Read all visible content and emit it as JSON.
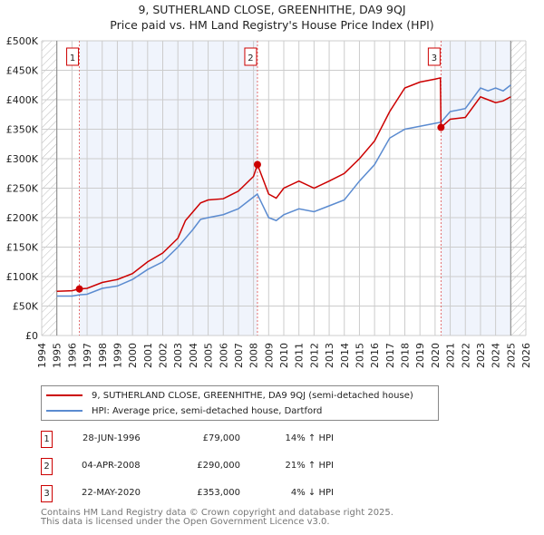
{
  "chart_data": {
    "type": "line",
    "title": "9, SUTHERLAND CLOSE, GREENHITHE, DA9 9QJ",
    "subtitle": "Price paid vs. HM Land Registry's House Price Index (HPI)",
    "xlim": [
      1994,
      2026
    ],
    "ylim": [
      0,
      500000
    ],
    "x_ticks": [
      "1994",
      "1995",
      "1996",
      "1997",
      "1998",
      "1999",
      "2000",
      "2001",
      "2002",
      "2003",
      "2004",
      "2005",
      "2006",
      "2007",
      "2008",
      "2009",
      "2010",
      "2011",
      "2012",
      "2013",
      "2014",
      "2015",
      "2016",
      "2017",
      "2018",
      "2019",
      "2020",
      "2021",
      "2022",
      "2023",
      "2024",
      "2025",
      "2026"
    ],
    "y_ticks": [
      {
        "v": 0,
        "l": "£0"
      },
      {
        "v": 50000,
        "l": "£50K"
      },
      {
        "v": 100000,
        "l": "£100K"
      },
      {
        "v": 150000,
        "l": "£150K"
      },
      {
        "v": 200000,
        "l": "£200K"
      },
      {
        "v": 250000,
        "l": "£250K"
      },
      {
        "v": 300000,
        "l": "£300K"
      },
      {
        "v": 350000,
        "l": "£350K"
      },
      {
        "v": 400000,
        "l": "£400K"
      },
      {
        "v": 450000,
        "l": "£450K"
      },
      {
        "v": 500000,
        "l": "£500K"
      }
    ],
    "grid": true,
    "series": [
      {
        "name": "9, SUTHERLAND CLOSE, GREENHITHE, DA9 9QJ (semi-detached house)",
        "color": "#cc0000",
        "x": [
          1995,
          1996,
          1996.49,
          1997,
          1998,
          1999,
          2000,
          2001,
          2002,
          2003,
          2003.5,
          2004,
          2004.5,
          2005,
          2006,
          2007,
          2008,
          2008.26,
          2009,
          2009.5,
          2010,
          2011,
          2012,
          2013,
          2014,
          2015,
          2016,
          2017,
          2018,
          2019,
          2020,
          2020.35,
          2020.39,
          2021,
          2022,
          2023,
          2023.5,
          2024,
          2024.5,
          2025
        ],
        "y": [
          75000,
          76000,
          79000,
          80000,
          90000,
          95000,
          105000,
          125000,
          140000,
          165000,
          195000,
          210000,
          225000,
          230000,
          232000,
          245000,
          270000,
          290000,
          240000,
          233000,
          250000,
          262000,
          250000,
          262000,
          275000,
          300000,
          330000,
          380000,
          420000,
          430000,
          435000,
          437000,
          353000,
          367000,
          370000,
          405000,
          400000,
          395000,
          398000,
          405000
        ]
      },
      {
        "name": "HPI: Average price, semi-detached house, Dartford",
        "color": "#5b8bd0",
        "x": [
          1995,
          1996,
          1996.5,
          1997,
          1998,
          1999,
          2000,
          2001,
          2002,
          2003,
          2004,
          2004.5,
          2005,
          2006,
          2007,
          2008,
          2008.25,
          2009,
          2009.5,
          2010,
          2011,
          2012,
          2013,
          2014,
          2015,
          2016,
          2017,
          2018,
          2019,
          2020,
          2020.4,
          2021,
          2022,
          2023,
          2023.5,
          2024,
          2024.5,
          2025
        ],
        "y": [
          67000,
          67000,
          69000,
          70000,
          80000,
          84000,
          95000,
          112000,
          125000,
          150000,
          180000,
          197000,
          200000,
          205000,
          215000,
          235000,
          240000,
          200000,
          195000,
          205000,
          215000,
          210000,
          220000,
          230000,
          262000,
          290000,
          335000,
          350000,
          355000,
          360000,
          362000,
          380000,
          385000,
          420000,
          415000,
          420000,
          415000,
          425000
        ]
      }
    ],
    "sales": [
      {
        "n": "1",
        "x": 1996.49,
        "y": 79000
      },
      {
        "n": "2",
        "x": 2008.26,
        "y": 290000
      },
      {
        "n": "3",
        "x": 2020.39,
        "y": 353000
      }
    ]
  },
  "legend": {
    "property": "9, SUTHERLAND CLOSE, GREENHITHE, DA9 9QJ (semi-detached house)",
    "hpi": "HPI: Average price, semi-detached house, Dartford"
  },
  "table": [
    {
      "n": "1",
      "date": "28-JUN-1996",
      "price": "£79,000",
      "hpi": "14% ↑ HPI"
    },
    {
      "n": "2",
      "date": "04-APR-2008",
      "price": "£290,000",
      "hpi": "21% ↑ HPI"
    },
    {
      "n": "3",
      "date": "22-MAY-2020",
      "price": "£353,000",
      "hpi": "4% ↓ HPI"
    }
  ],
  "footer": [
    "Contains HM Land Registry data © Crown copyright and database right 2025.",
    "This data is licensed under the Open Government Licence v3.0."
  ]
}
